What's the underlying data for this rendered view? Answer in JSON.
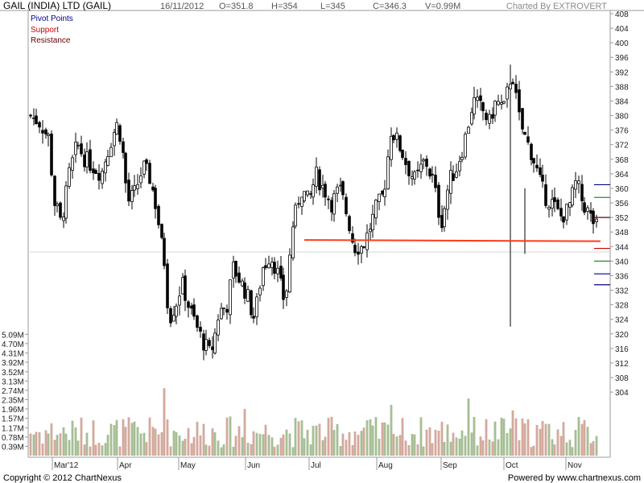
{
  "header": {
    "title": "GAIL (INDIA) LTD (GAIL)",
    "date": "16/11/2012",
    "open": "O=351.8",
    "high": "H=354",
    "low": "L=345",
    "close": "C=346.3",
    "volume": "V=0.99M",
    "charted_by": "Charted By EXTROVERT"
  },
  "legend": {
    "pivot": "Pivot Points",
    "support": "Support",
    "resistance": "Resistance",
    "colors": {
      "pivot": "#00008b",
      "support": "#cc0000",
      "resistance": "#660000"
    }
  },
  "footer": {
    "copyright": "Copyright © 2012 ChartNexus",
    "powered": "Powered by www.chartnexus.com"
  },
  "chart_data": {
    "type": "candlestick",
    "x_ticks": [
      "Mar'12",
      "Apr",
      "May",
      "Jun",
      "Jul",
      "Aug",
      "Sep",
      "Oct",
      "Nov"
    ],
    "price_ticks": [
      304,
      308,
      312,
      316,
      320,
      324,
      328,
      332,
      336,
      340,
      344,
      348,
      352,
      356,
      360,
      364,
      368,
      372,
      376,
      380,
      384,
      388,
      392,
      396,
      400,
      404,
      408
    ],
    "volume_ticks": [
      "0.39M",
      "0.78M",
      "1.17M",
      "1.57M",
      "1.96M",
      "2.35M",
      "2.74M",
      "3.13M",
      "3.52M",
      "3.92M",
      "4.31M",
      "4.70M",
      "5.09M"
    ],
    "support_line": {
      "from_month": "Jul",
      "value": 345.8,
      "color": "#ff3b1a"
    },
    "pivot_markers": [
      {
        "kind": "resistance",
        "value": 361.0,
        "color": "#00008b"
      },
      {
        "kind": "resistance",
        "value": 357.5,
        "color": "#2e8b2e"
      },
      {
        "kind": "resistance",
        "value": 352.0,
        "color": "#660000"
      },
      {
        "kind": "pivot",
        "value": 343.5,
        "color": "#cc0000"
      },
      {
        "kind": "support",
        "value": 340.0,
        "color": "#2e8b2e"
      },
      {
        "kind": "support",
        "value": 336.5,
        "color": "#00008b"
      },
      {
        "kind": "support",
        "value": 333.5,
        "color": "#00008b"
      }
    ],
    "candle_color": "#000000",
    "volume_up_color": "#a6be94",
    "volume_down_color": "#d3a99c"
  }
}
